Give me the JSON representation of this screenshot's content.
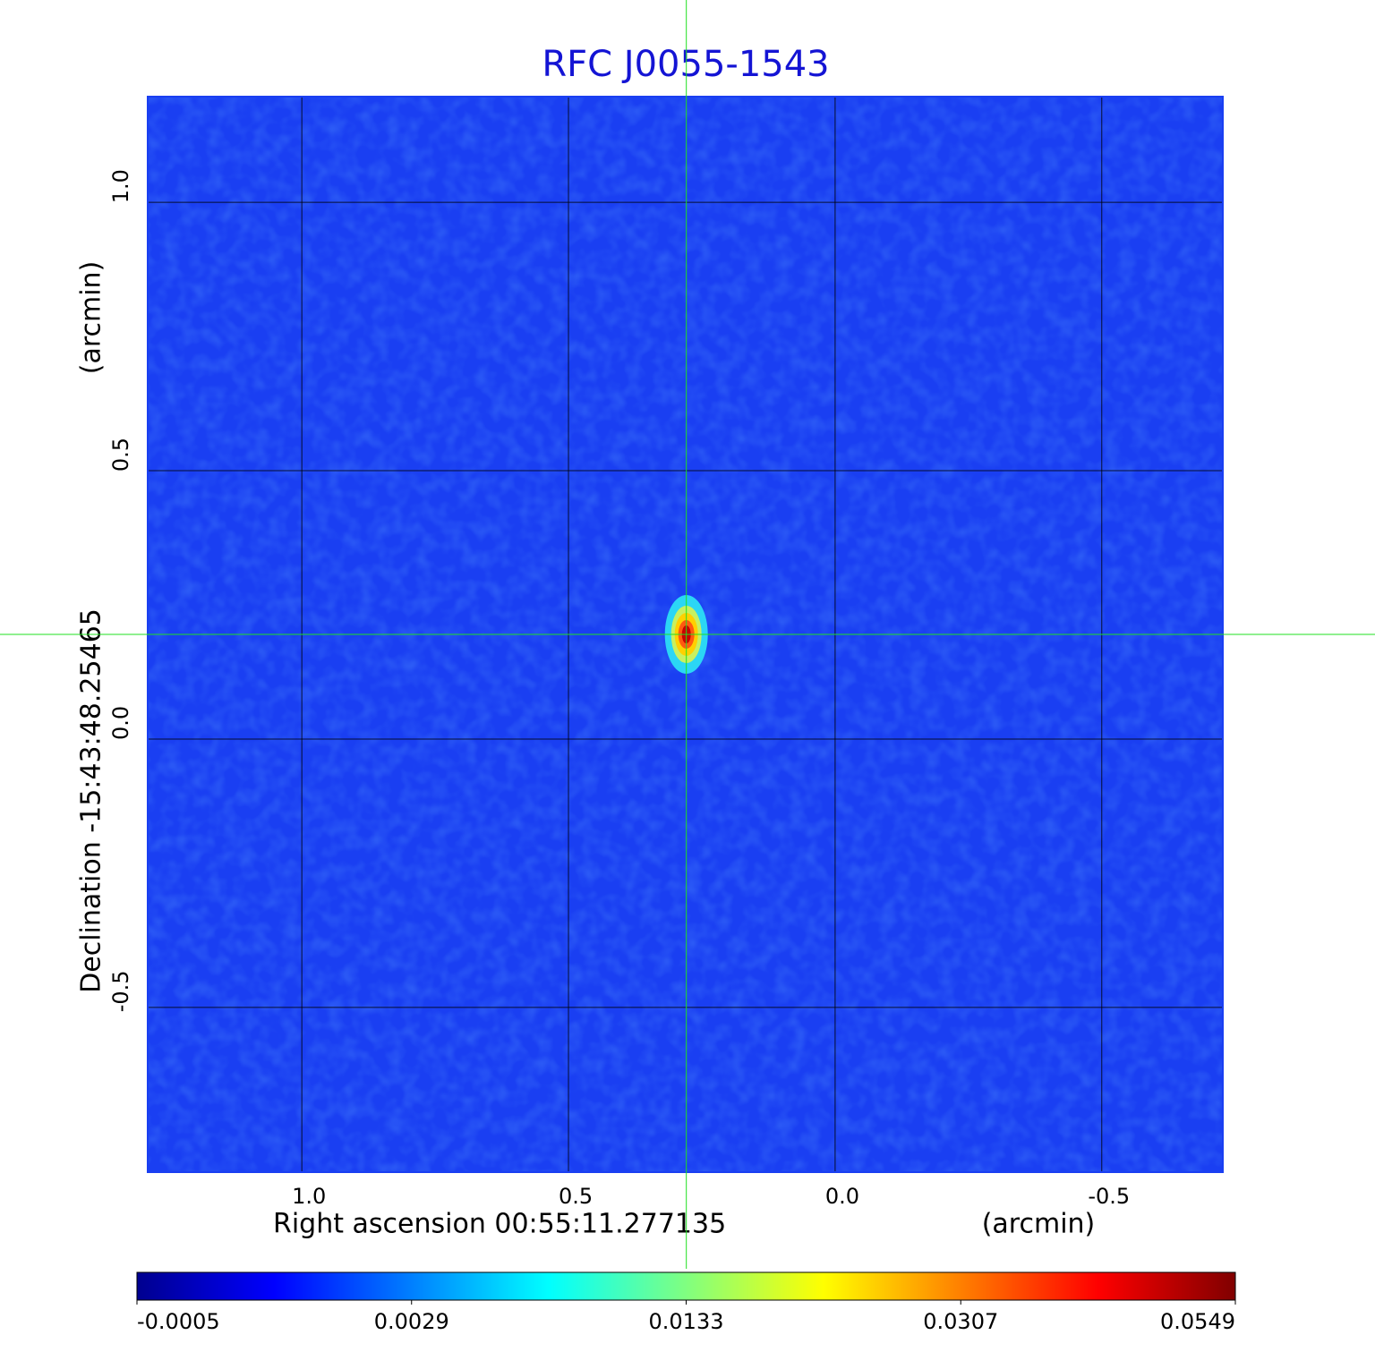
{
  "chart_data": {
    "type": "image",
    "title": "RFC J0055-1543",
    "xlabel": "Right ascension  00:55:11.277135",
    "xunit": "(arcmin)",
    "ylabel": "Declination  -15:43:48.25465",
    "yunit": "(arcmin)",
    "xlim": [
      1.289,
      -0.727
    ],
    "ylim": [
      -0.807,
      1.197
    ],
    "xticks": [
      {
        "value": 1,
        "label": "1.0"
      },
      0.5,
      {
        "value": 0,
        "label": "0.0"
      },
      -0.5
    ],
    "yticks": [
      {
        "value": -0.5,
        "label": "-0.5"
      },
      {
        "value": 0,
        "label": "0.0"
      },
      0.5,
      {
        "value": 1,
        "label": "1.0"
      }
    ],
    "grid": true,
    "crosshair": {
      "x": 0.279,
      "y": 0.195
    },
    "colorbar_ticks": [
      -0.0005,
      0.0029,
      0.0133,
      0.0307,
      0.0549
    ]
  }
}
